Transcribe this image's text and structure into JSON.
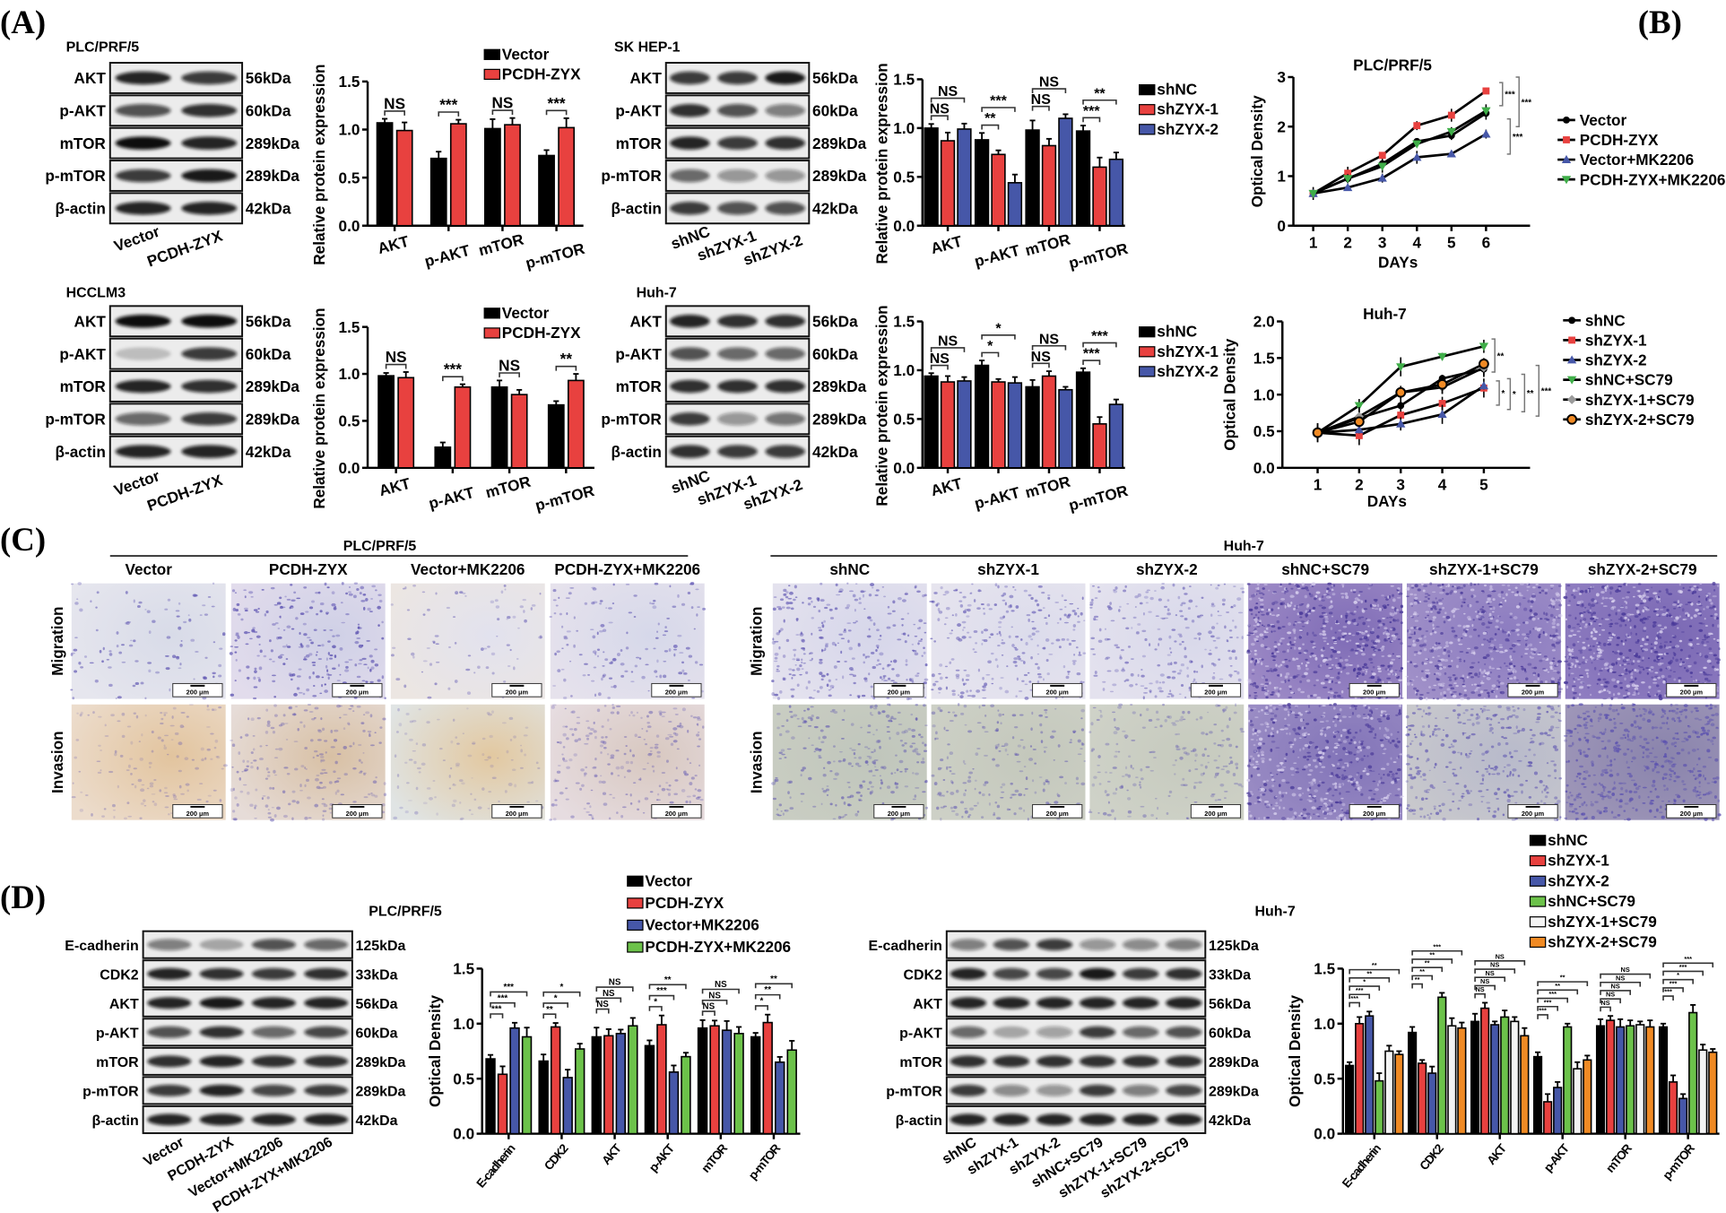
{
  "panel_labels": [
    "(A)",
    "(B)",
    "(C)",
    "(D)"
  ],
  "blots": [
    {
      "title": "PLC/PRF/5",
      "rows": [
        {
          "protein": "AKT",
          "kda": "56kDa"
        },
        {
          "protein": "p-AKT",
          "kda": "60kDa"
        },
        {
          "protein": "mTOR",
          "kda": "289kDa"
        },
        {
          "protein": "p-mTOR",
          "kda": "289kDa"
        },
        {
          "protein": "β-actin",
          "kda": "42kDa"
        }
      ],
      "lanes": [
        "Vector",
        "PCDH-ZYX"
      ]
    },
    {
      "title": "SK HEP-1",
      "rows": [
        {
          "protein": "AKT",
          "kda": "56kDa"
        },
        {
          "protein": "p-AKT",
          "kda": "60kDa"
        },
        {
          "protein": "mTOR",
          "kda": "289kDa"
        },
        {
          "protein": "p-mTOR",
          "kda": "289kDa"
        },
        {
          "protein": "β-actin",
          "kda": "42kDa"
        }
      ],
      "lanes": [
        "shNC",
        "shZYX-1",
        "shZYX-2"
      ]
    },
    {
      "title": "HCCLM3",
      "rows": [
        {
          "protein": "AKT",
          "kda": "56kDa"
        },
        {
          "protein": "p-AKT",
          "kda": "60kDa"
        },
        {
          "protein": "mTOR",
          "kda": "289kDa"
        },
        {
          "protein": "p-mTOR",
          "kda": "289kDa"
        },
        {
          "protein": "β-actin",
          "kda": "42kDa"
        }
      ],
      "lanes": [
        "Vector",
        "PCDH-ZYX"
      ]
    },
    {
      "title": "Huh-7",
      "rows": [
        {
          "protein": "AKT",
          "kda": "56kDa"
        },
        {
          "protein": "p-AKT",
          "kda": "60kDa"
        },
        {
          "protein": "mTOR",
          "kda": "289kDa"
        },
        {
          "protein": "p-mTOR",
          "kda": "289kDa"
        },
        {
          "protein": "β-actin",
          "kda": "42kDa"
        }
      ],
      "lanes": [
        "shNC",
        "shZYX-1",
        "shZYX-2"
      ]
    },
    {
      "title": "PLC/PRF/5",
      "rows": [
        {
          "protein": "E-cadherin",
          "kda": "125kDa"
        },
        {
          "protein": "CDK2",
          "kda": "33kDa"
        },
        {
          "protein": "AKT",
          "kda": "56kDa"
        },
        {
          "protein": "p-AKT",
          "kda": "60kDa"
        },
        {
          "protein": "mTOR",
          "kda": "289kDa"
        },
        {
          "protein": "p-mTOR",
          "kda": "289kDa"
        },
        {
          "protein": "β-actin",
          "kda": "42kDa"
        }
      ],
      "lanes": [
        "Vector",
        "PCDH-ZYX",
        "Vector+MK2206",
        "PCDH-ZYX+MK2206"
      ]
    },
    {
      "title": "Huh-7",
      "rows": [
        {
          "protein": "E-cadherin",
          "kda": "125kDa"
        },
        {
          "protein": "CDK2",
          "kda": "33kDa"
        },
        {
          "protein": "AKT",
          "kda": "56kDa"
        },
        {
          "protein": "p-AKT",
          "kda": "60kDa"
        },
        {
          "protein": "mTOR",
          "kda": "289kDa"
        },
        {
          "protein": "p-mTOR",
          "kda": "289kDa"
        },
        {
          "protein": "β-actin",
          "kda": "42kDa"
        }
      ],
      "lanes": [
        "shNC",
        "shZYX-1",
        "shZYX-2",
        "shNC+SC79",
        "shZYX-1+SC79",
        "shZYX-2+SC79"
      ]
    }
  ],
  "transwell": [
    {
      "title": "PLC/PRF/5",
      "groups": [
        "Vector",
        "PCDH-ZYX",
        "Vector+MK2206",
        "PCDH-ZYX+MK2206"
      ],
      "rows": [
        "Migration",
        "Invasion"
      ],
      "scale_bar": "200 μm"
    },
    {
      "title": "Huh-7",
      "groups": [
        "shNC",
        "shZYX-1",
        "shZYX-2",
        "shNC+SC79",
        "shZYX-1+SC79",
        "shZYX-2+SC79"
      ],
      "rows": [
        "Migration",
        "Invasion"
      ],
      "scale_bar": "200 μm"
    }
  ],
  "chart_data": [
    {
      "type": "bar",
      "title": "",
      "xlabel": "",
      "ylabel": "Relative  protein expression",
      "ylim": [
        0,
        1.5
      ],
      "yticks": [
        "0.0",
        "0.5",
        "1.0",
        "1.5"
      ],
      "legend": "top-right",
      "categories": [
        "AKT",
        "p-AKT",
        "mTOR",
        "p-mTOR"
      ],
      "series": [
        {
          "name": "Vector",
          "color": "#000000",
          "values": [
            1.07,
            0.7,
            1.01,
            0.73
          ]
        },
        {
          "name": "PCDH-ZYX",
          "color": "#e8413f",
          "values": [
            0.99,
            1.06,
            1.05,
            1.02
          ]
        }
      ],
      "significance": [
        [
          "NS"
        ],
        [
          "***"
        ],
        [
          "NS"
        ],
        [
          "***"
        ]
      ]
    },
    {
      "type": "bar",
      "title": "",
      "xlabel": "",
      "ylabel": "Relative  protein expression",
      "ylim": [
        0,
        1.5
      ],
      "yticks": [
        "0.0",
        "0.5",
        "1.0",
        "1.5"
      ],
      "legend": "right",
      "categories": [
        "AKT",
        "p-AKT",
        "mTOR",
        "p-mTOR"
      ],
      "series": [
        {
          "name": "shNC",
          "color": "#000000",
          "values": [
            1.0,
            0.88,
            0.98,
            0.97
          ]
        },
        {
          "name": "shZYX-1",
          "color": "#e8413f",
          "values": [
            0.87,
            0.73,
            0.82,
            0.6
          ]
        },
        {
          "name": "shZYX-2",
          "color": "#4657a8",
          "values": [
            0.99,
            0.44,
            1.1,
            0.68
          ]
        }
      ],
      "significance": [
        [
          "NS",
          "NS"
        ],
        [
          "**",
          "***"
        ],
        [
          "NS",
          "NS"
        ],
        [
          "***",
          "**"
        ]
      ]
    },
    {
      "type": "bar",
      "title": "",
      "xlabel": "",
      "ylabel": "Relative  protein expression",
      "ylim": [
        0,
        1.5
      ],
      "yticks": [
        "0.0",
        "0.5",
        "1.0",
        "1.5"
      ],
      "legend": "top-right",
      "categories": [
        "AKT",
        "p-AKT",
        "mTOR",
        "p-mTOR"
      ],
      "series": [
        {
          "name": "Vector",
          "color": "#000000",
          "values": [
            0.98,
            0.22,
            0.86,
            0.67
          ]
        },
        {
          "name": "PCDH-ZYX",
          "color": "#e8413f",
          "values": [
            0.96,
            0.86,
            0.78,
            0.93
          ]
        }
      ],
      "significance": [
        [
          "NS"
        ],
        [
          "***"
        ],
        [
          "NS"
        ],
        [
          "**"
        ]
      ]
    },
    {
      "type": "bar",
      "title": "",
      "xlabel": "",
      "ylabel": "Relative  protein expression",
      "ylim": [
        0,
        1.5
      ],
      "yticks": [
        "0.0",
        "0.5",
        "1.0",
        "1.5"
      ],
      "legend": "right",
      "categories": [
        "AKT",
        "p-AKT",
        "mTOR",
        "p-mTOR"
      ],
      "series": [
        {
          "name": "shNC",
          "color": "#000000",
          "values": [
            0.94,
            1.05,
            0.83,
            0.98
          ]
        },
        {
          "name": "shZYX-1",
          "color": "#e8413f",
          "values": [
            0.88,
            0.88,
            0.94,
            0.45
          ]
        },
        {
          "name": "shZYX-2",
          "color": "#4657a8",
          "values": [
            0.89,
            0.87,
            0.8,
            0.65
          ]
        }
      ],
      "significance": [
        [
          "NS",
          "NS"
        ],
        [
          "*",
          "*"
        ],
        [
          "NS",
          "NS"
        ],
        [
          "***",
          "***"
        ]
      ]
    },
    {
      "type": "line",
      "title": "PLC/PRF/5",
      "xlabel": "DAYs",
      "ylabel": "Optical Density",
      "ylim": [
        0,
        3
      ],
      "yticks": [
        "0",
        "1",
        "2",
        "3"
      ],
      "legend": "right",
      "x": [
        1,
        2,
        3,
        4,
        5,
        6
      ],
      "xticks": [
        "1",
        "2",
        "3",
        "4",
        "5",
        "6"
      ],
      "series": [
        {
          "name": "Vector",
          "color": "#000000",
          "marker": "circle",
          "values": [
            0.65,
            0.95,
            1.25,
            1.7,
            1.82,
            2.27
          ]
        },
        {
          "name": "PCDH-ZYX",
          "color": "#e8413f",
          "marker": "square",
          "values": [
            0.65,
            1.06,
            1.42,
            2.02,
            2.23,
            2.72
          ]
        },
        {
          "name": "Vector+MK2206",
          "color": "#4657a8",
          "marker": "triangle",
          "values": [
            0.65,
            0.77,
            0.96,
            1.38,
            1.45,
            1.85
          ]
        },
        {
          "name": "PCDH-ZYX+MK2206",
          "color": "#3fae49",
          "marker": "triangle-down",
          "values": [
            0.65,
            0.95,
            1.2,
            1.65,
            1.9,
            2.32
          ]
        }
      ],
      "annotations": [
        "***",
        "***",
        "***"
      ]
    },
    {
      "type": "line",
      "title": "Huh-7",
      "xlabel": "DAYs",
      "ylabel": "Optical Density",
      "ylim": [
        0,
        2
      ],
      "yticks": [
        "0.0",
        "0.5",
        "1.0",
        "1.5",
        "2.0"
      ],
      "legend": "right",
      "x": [
        1,
        2,
        3,
        4,
        5
      ],
      "xticks": [
        "1",
        "2",
        "3",
        "4",
        "5"
      ],
      "series": [
        {
          "name": "shNC",
          "color": "#000000",
          "marker": "circle",
          "values": [
            0.48,
            0.68,
            0.85,
            1.22,
            1.35
          ]
        },
        {
          "name": "shZYX-1",
          "color": "#e8413f",
          "marker": "square",
          "values": [
            0.48,
            0.44,
            0.72,
            0.88,
            1.09
          ]
        },
        {
          "name": "shZYX-2",
          "color": "#4657a8",
          "marker": "triangle",
          "values": [
            0.48,
            0.52,
            0.6,
            0.73,
            1.12
          ]
        },
        {
          "name": "shNC+SC79",
          "color": "#3fae49",
          "marker": "triangle-down",
          "values": [
            0.48,
            0.85,
            1.38,
            1.52,
            1.66
          ]
        },
        {
          "name": "shZYX-1+SC79",
          "color": "#9a9a9a",
          "marker": "diamond",
          "values": [
            0.48,
            0.7,
            1.03,
            1.1,
            1.37
          ]
        },
        {
          "name": "shZYX-2+SC79",
          "color": "#f08a24",
          "marker": "circle-open",
          "values": [
            0.48,
            0.63,
            1.03,
            1.14,
            1.42
          ]
        }
      ],
      "annotations": [
        "**",
        "*",
        "*",
        "**",
        "***"
      ]
    },
    {
      "type": "bar",
      "title": "",
      "xlabel": "",
      "ylabel": "Optical Density",
      "ylim": [
        0,
        1.5
      ],
      "yticks": [
        "0.0",
        "0.5",
        "1.0",
        "1.5"
      ],
      "legend": "top",
      "categories": [
        "E-cadherin",
        "CDK2",
        "AKT",
        "p-AKT",
        "mTOR",
        "p-mTOR"
      ],
      "series": [
        {
          "name": "Vector",
          "color": "#000000",
          "values": [
            0.68,
            0.66,
            0.88,
            0.8,
            0.96,
            0.88
          ]
        },
        {
          "name": "PCDH-ZYX",
          "color": "#e8413f",
          "values": [
            0.54,
            0.97,
            0.89,
            0.99,
            0.98,
            1.01
          ]
        },
        {
          "name": "Vector+MK2206",
          "color": "#4657a8",
          "values": [
            0.96,
            0.51,
            0.91,
            0.56,
            0.94,
            0.65
          ]
        },
        {
          "name": "PCDH-ZYX+MK2206",
          "color": "#6cc24a",
          "values": [
            0.88,
            0.77,
            0.98,
            0.7,
            0.91,
            0.76
          ]
        }
      ],
      "significance": [
        [
          "***",
          "***",
          "***"
        ],
        [
          "**",
          "*",
          "*"
        ],
        [
          "NS",
          "NS",
          "NS"
        ],
        [
          "*",
          "***",
          "**"
        ],
        [
          "NS",
          "NS",
          "NS"
        ],
        [
          "*",
          "**",
          "**"
        ]
      ]
    },
    {
      "type": "bar",
      "title": "",
      "xlabel": "",
      "ylabel": "Optical Density",
      "ylim": [
        0,
        1.5
      ],
      "yticks": [
        "0.0",
        "0.5",
        "1.0",
        "1.5"
      ],
      "legend": "top-right",
      "categories": [
        "E-cadherin",
        "CDK2",
        "AKT",
        "p-AKT",
        "mTOR",
        "p-mTOR"
      ],
      "series": [
        {
          "name": "shNC",
          "color": "#000000",
          "values": [
            0.62,
            0.92,
            1.02,
            0.7,
            0.98,
            0.97
          ]
        },
        {
          "name": "shZYX-1",
          "color": "#e8413f",
          "values": [
            1.0,
            0.64,
            1.14,
            0.29,
            1.03,
            0.47
          ]
        },
        {
          "name": "shZYX-2",
          "color": "#4657a8",
          "values": [
            1.07,
            0.55,
            0.99,
            0.42,
            0.97,
            0.32
          ]
        },
        {
          "name": "shNC+SC79",
          "color": "#6cc24a",
          "values": [
            0.48,
            1.24,
            1.06,
            0.97,
            0.98,
            1.1
          ]
        },
        {
          "name": "shZYX-1+SC79",
          "color": "#f4f4f4",
          "values": [
            0.75,
            0.98,
            1.02,
            0.59,
            0.99,
            0.76
          ]
        },
        {
          "name": "shZYX-2+SC79",
          "color": "#f08a24",
          "values": [
            0.72,
            0.96,
            0.89,
            0.67,
            0.97,
            0.74
          ]
        }
      ],
      "significance": [
        [
          "***",
          "***",
          "*",
          "**",
          "**"
        ],
        [
          "**",
          "**",
          "**",
          "**",
          "***"
        ],
        [
          "NS",
          "NS",
          "NS",
          "NS",
          "NS"
        ],
        [
          "***",
          "***",
          "***",
          "**",
          "**"
        ],
        [
          "NS",
          "NS",
          "NS",
          "NS",
          "NS"
        ],
        [
          "***",
          "***",
          "*",
          "***",
          "***"
        ]
      ]
    }
  ]
}
